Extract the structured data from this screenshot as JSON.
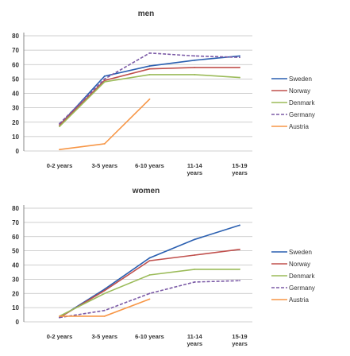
{
  "chart_data": [
    {
      "type": "line",
      "title": "men",
      "categories": [
        "0-2 years",
        "3-5 years",
        "6-10 years",
        "11-14 years",
        "15-19 years"
      ],
      "ylim": [
        0,
        80
      ],
      "yticks": [
        0,
        10,
        20,
        30,
        40,
        50,
        60,
        70,
        80
      ],
      "grid": true,
      "legend": "right",
      "series": [
        {
          "name": "Sweden",
          "color": "#2a5fb0",
          "dash": "solid",
          "values": [
            18,
            52,
            59,
            63,
            66
          ]
        },
        {
          "name": "Norway",
          "color": "#c0504d",
          "dash": "solid",
          "values": [
            18,
            49,
            57,
            58,
            58
          ]
        },
        {
          "name": "Denmark",
          "color": "#9bbb59",
          "dash": "solid",
          "values": [
            17,
            48,
            53,
            53,
            51
          ]
        },
        {
          "name": "Germany",
          "color": "#7b5aa6",
          "dash": "dashed",
          "values": [
            19,
            50,
            68,
            66,
            65
          ]
        },
        {
          "name": "Austria",
          "color": "#f79646",
          "dash": "solid",
          "values": [
            1,
            5,
            36,
            null,
            null
          ]
        }
      ]
    },
    {
      "type": "line",
      "title": "women",
      "categories": [
        "0-2 years",
        "3-5 years",
        "6-10 years",
        "11-14 years",
        "15-19 years"
      ],
      "ylim": [
        0,
        80
      ],
      "yticks": [
        0,
        10,
        20,
        30,
        40,
        50,
        60,
        70,
        80
      ],
      "grid": true,
      "legend": "right",
      "series": [
        {
          "name": "Sweden",
          "color": "#2a5fb0",
          "dash": "solid",
          "values": [
            3,
            23,
            45,
            58,
            68
          ]
        },
        {
          "name": "Norway",
          "color": "#c0504d",
          "dash": "solid",
          "values": [
            3,
            22,
            43,
            47,
            51
          ]
        },
        {
          "name": "Denmark",
          "color": "#9bbb59",
          "dash": "solid",
          "values": [
            4,
            20,
            33,
            37,
            37
          ]
        },
        {
          "name": "Germany",
          "color": "#7b5aa6",
          "dash": "dashed",
          "values": [
            3,
            8,
            20,
            28,
            29
          ]
        },
        {
          "name": "Austria",
          "color": "#f79646",
          "dash": "solid",
          "values": [
            4,
            4,
            16,
            null,
            null
          ]
        }
      ]
    }
  ]
}
